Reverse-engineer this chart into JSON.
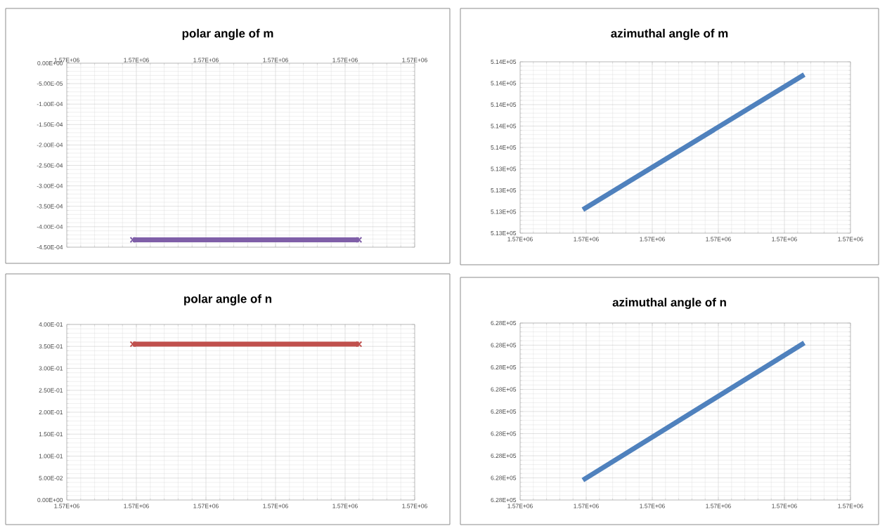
{
  "chart_data": [
    {
      "type": "line",
      "title": "polar angle of m",
      "x": [
        1568950,
        1572200
      ],
      "series": [
        {
          "color": "#7f5fa8",
          "values": [
            -0.000432,
            -0.000432
          ]
        }
      ],
      "marker": "cross",
      "grid": true,
      "xlim": [
        1568000,
        1573000
      ],
      "xticks": [
        {
          "value": 1568000,
          "label": "1.57E+06"
        },
        {
          "value": 1569000,
          "label": "1.57E+06"
        },
        {
          "value": 1570000,
          "label": "1.57E+06"
        },
        {
          "value": 1571000,
          "label": "1.57E+06"
        },
        {
          "value": 1572000,
          "label": "1.57E+06"
        },
        {
          "value": 1573000,
          "label": "1.57E+06"
        }
      ],
      "ylim": [
        -0.00045,
        0
      ],
      "yticks": [
        {
          "value": -0.00045,
          "label": "-4.50E-04"
        },
        {
          "value": -0.0004,
          "label": "-4.00E-04"
        },
        {
          "value": -0.00035,
          "label": "-3.50E-04"
        },
        {
          "value": -0.0003,
          "label": "-3.00E-04"
        },
        {
          "value": -0.00025,
          "label": "-2.50E-04"
        },
        {
          "value": -0.0002,
          "label": "-2.00E-04"
        },
        {
          "value": -0.00015,
          "label": "-1.50E-04"
        },
        {
          "value": -0.0001,
          "label": "-1.00E-04"
        },
        {
          "value": -5e-05,
          "label": "-5.00E-05"
        },
        {
          "value": 0,
          "label": "0.00E+00"
        }
      ]
    },
    {
      "type": "line",
      "title": "azimuthal angle of m",
      "x": [
        1568950,
        1572300
      ],
      "series": [
        {
          "color": "#4f81bd",
          "values": [
            513210,
            513840
          ]
        }
      ],
      "grid": true,
      "xlim": [
        1568000,
        1573000
      ],
      "xticks": [
        {
          "value": 1568000,
          "label": "1.57E+06"
        },
        {
          "value": 1569000,
          "label": "1.57E+06"
        },
        {
          "value": 1570000,
          "label": "1.57E+06"
        },
        {
          "value": 1571000,
          "label": "1.57E+06"
        },
        {
          "value": 1572000,
          "label": "1.57E+06"
        },
        {
          "value": 1573000,
          "label": "1.57E+06"
        }
      ],
      "ylim": [
        513100,
        513900
      ],
      "yticks": [
        {
          "value": 513100,
          "label": "5.13E+05"
        },
        {
          "value": 513200,
          "label": "5.13E+05"
        },
        {
          "value": 513300,
          "label": "5.13E+05"
        },
        {
          "value": 513400,
          "label": "5.13E+05"
        },
        {
          "value": 513500,
          "label": "5.14E+05"
        },
        {
          "value": 513600,
          "label": "5.14E+05"
        },
        {
          "value": 513700,
          "label": "5.14E+05"
        },
        {
          "value": 513800,
          "label": "5.14E+05"
        },
        {
          "value": 513900,
          "label": "5.14E+05"
        }
      ]
    },
    {
      "type": "line",
      "title": "polar angle of n",
      "x": [
        1568950,
        1572200
      ],
      "series": [
        {
          "color": "#c0504d",
          "values": [
            0.355,
            0.355
          ]
        }
      ],
      "marker": "cross",
      "grid": true,
      "xlim": [
        1568000,
        1573000
      ],
      "xticks": [
        {
          "value": 1568000,
          "label": "1.57E+06"
        },
        {
          "value": 1569000,
          "label": "1.57E+06"
        },
        {
          "value": 1570000,
          "label": "1.57E+06"
        },
        {
          "value": 1571000,
          "label": "1.57E+06"
        },
        {
          "value": 1572000,
          "label": "1.57E+06"
        },
        {
          "value": 1573000,
          "label": "1.57E+06"
        }
      ],
      "ylim": [
        0,
        0.4
      ],
      "yticks": [
        {
          "value": 0,
          "label": "0.00E+00"
        },
        {
          "value": 0.05,
          "label": "5.00E-02"
        },
        {
          "value": 0.1,
          "label": "1.00E-01"
        },
        {
          "value": 0.15,
          "label": "1.50E-01"
        },
        {
          "value": 0.2,
          "label": "2.00E-01"
        },
        {
          "value": 0.25,
          "label": "2.50E-01"
        },
        {
          "value": 0.3,
          "label": "3.00E-01"
        },
        {
          "value": 0.35,
          "label": "3.50E-01"
        },
        {
          "value": 0.4,
          "label": "4.00E-01"
        }
      ]
    },
    {
      "type": "line",
      "title": "azimuthal angle of n",
      "x": [
        1568950,
        1572300
      ],
      "series": [
        {
          "color": "#4f81bd",
          "values": [
            627690,
            628310
          ]
        }
      ],
      "grid": true,
      "xlim": [
        1568000,
        1573000
      ],
      "xticks": [
        {
          "value": 1568000,
          "label": "1.57E+06"
        },
        {
          "value": 1569000,
          "label": "1.57E+06"
        },
        {
          "value": 1570000,
          "label": "1.57E+06"
        },
        {
          "value": 1571000,
          "label": "1.57E+06"
        },
        {
          "value": 1572000,
          "label": "1.57E+06"
        },
        {
          "value": 1573000,
          "label": "1.57E+06"
        }
      ],
      "ylim": [
        627600,
        628400
      ],
      "yticks": [
        {
          "value": 627600,
          "label": "6.28E+05"
        },
        {
          "value": 627700,
          "label": "6.28E+05"
        },
        {
          "value": 627800,
          "label": "6.28E+05"
        },
        {
          "value": 627900,
          "label": "6.28E+05"
        },
        {
          "value": 628000,
          "label": "6.28E+05"
        },
        {
          "value": 628100,
          "label": "6.28E+05"
        },
        {
          "value": 628200,
          "label": "6.28E+05"
        },
        {
          "value": 628300,
          "label": "6.28E+05"
        },
        {
          "value": 628400,
          "label": "6.28E+05"
        }
      ]
    }
  ]
}
